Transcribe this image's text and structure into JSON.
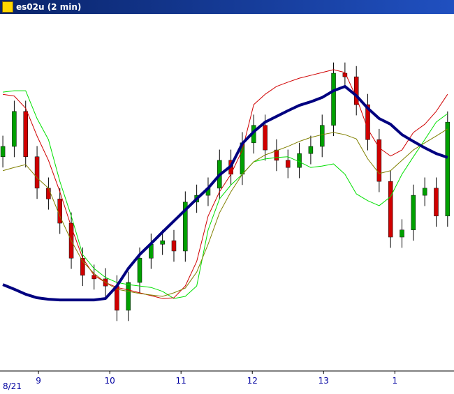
{
  "window": {
    "title": "es02u (2 min)"
  },
  "chart_data": {
    "type": "candlestick",
    "x": [
      8.5,
      8.66,
      8.82,
      8.98,
      9.14,
      9.3,
      9.46,
      9.62,
      9.78,
      9.94,
      10.1,
      10.26,
      10.42,
      10.58,
      10.74,
      10.9,
      11.06,
      11.22,
      11.38,
      11.54,
      11.7,
      11.86,
      12.02,
      12.18,
      12.34,
      12.5,
      12.66,
      12.82,
      12.98,
      13.14,
      13.3,
      13.46,
      13.62,
      13.78,
      13.94,
      14.1,
      14.26,
      14.42,
      14.58,
      14.74
    ],
    "open": [
      60,
      62.9,
      72.7,
      60.0,
      51.2,
      48.2,
      41.4,
      31.6,
      26.8,
      25.8,
      23.8,
      17.0,
      24.8,
      31.6,
      35.5,
      36.5,
      33.6,
      47.3,
      49.2,
      51.2,
      59.0,
      55.1,
      63.9,
      68.8,
      61.9,
      59.0,
      57.0,
      60.9,
      62.9,
      68.8,
      83.4,
      82.4,
      74.6,
      64.8,
      53.1,
      37.5,
      39.5,
      49.2,
      51.2,
      43.4
    ],
    "high": [
      65.9,
      75.7,
      75.7,
      63,
      54.2,
      51.2,
      44.4,
      34.6,
      29.8,
      28.8,
      26.8,
      27.8,
      34.6,
      38.5,
      39.5,
      39.5,
      50.3,
      52.2,
      54.2,
      62,
      62,
      66.9,
      71.8,
      71.8,
      64.9,
      62,
      63.9,
      65.9,
      71.8,
      86.4,
      86.4,
      85.4,
      77.6,
      67.8,
      56.1,
      42.5,
      52.2,
      54.2,
      54.2,
      72.7
    ],
    "low": [
      57,
      59.9,
      57,
      48.2,
      45.2,
      38.4,
      28.6,
      23.8,
      22.8,
      20.8,
      14,
      14,
      21.8,
      28.6,
      32.5,
      30.6,
      30.6,
      44.3,
      46.2,
      48.2,
      52.1,
      52.1,
      60.9,
      58.9,
      56,
      54,
      54,
      57.9,
      59.9,
      65.8,
      79.4,
      71.6,
      61.8,
      50.1,
      34.5,
      34.5,
      36.5,
      46.2,
      40.4,
      40.4
    ],
    "close": [
      62.9,
      72.7,
      60.0,
      51.2,
      48.2,
      41.4,
      31.6,
      26.8,
      25.8,
      23.8,
      17.0,
      24.8,
      31.6,
      35.5,
      36.5,
      33.6,
      47.3,
      49.2,
      51.2,
      59.0,
      55.1,
      63.9,
      68.8,
      61.9,
      59.0,
      57.0,
      60.9,
      62.9,
      68.8,
      83.4,
      82.4,
      74.6,
      64.8,
      53.1,
      37.5,
      39.5,
      49.2,
      51.2,
      43.4,
      69.7
    ],
    "up_color": "#00a000",
    "down_color": "#d00000",
    "wick_color": "#000000",
    "series": [
      {
        "color": "#00e000",
        "width": 1,
        "values": [
          78.1,
          78.5,
          78.5,
          70.7,
          64.8,
          53.1,
          43.4,
          32.6,
          28.7,
          26.2,
          24.8,
          24.2,
          23.8,
          23.4,
          22.3,
          20.3,
          20.9,
          23.8,
          39.5,
          48.2,
          52.1,
          55.1,
          58.6,
          59.4,
          59.8,
          60.0,
          58.6,
          57.0,
          57.4,
          58.0,
          55.1,
          49.6,
          47.7,
          46.3,
          48.8,
          55.1,
          60.0,
          64.8,
          69.7,
          72.1
        ]
      },
      {
        "color": "#d00000",
        "width": 1,
        "values": [
          77.5,
          77.0,
          73.6,
          65.8,
          59.0,
          50.2,
          40.4,
          31.6,
          26.8,
          24.8,
          23.4,
          22.7,
          21.9,
          21.1,
          20.3,
          20.5,
          23.8,
          30.7,
          43.4,
          50.2,
          55.1,
          61.9,
          74.6,
          77.5,
          79.7,
          80.9,
          82.0,
          82.8,
          83.6,
          84.4,
          83.6,
          76.6,
          67.8,
          62.5,
          60.2,
          61.9,
          66.8,
          69.1,
          72.7,
          77.5
        ]
      },
      {
        "color": "#808000",
        "width": 1,
        "values": [
          56.1,
          57.0,
          57.8,
          54.1,
          51.2,
          43.4,
          36.5,
          30.7,
          27.3,
          24.8,
          22.9,
          22.3,
          21.7,
          21.3,
          20.9,
          21.9,
          23.2,
          27.7,
          35.5,
          44.3,
          50.2,
          55.1,
          58.6,
          60.5,
          61.7,
          62.9,
          64.3,
          65.4,
          66.2,
          66.8,
          66.2,
          65.0,
          59.4,
          55.3,
          56.1,
          59.0,
          61.9,
          63.9,
          65.8,
          67.8
        ]
      },
      {
        "color": "#000080",
        "width": 4,
        "values": [
          24.2,
          22.9,
          21.5,
          20.5,
          20.1,
          19.9,
          19.9,
          19.9,
          19.9,
          20.3,
          23.8,
          28.7,
          32.6,
          35.7,
          38.9,
          42.0,
          45.1,
          48.2,
          51.2,
          54.9,
          57.4,
          63.7,
          67.0,
          69.7,
          71.3,
          72.9,
          74.4,
          75.4,
          76.6,
          78.5,
          79.7,
          77.1,
          73.6,
          70.7,
          69.1,
          66.2,
          64.3,
          62.5,
          60.9,
          59.8
        ]
      }
    ],
    "xlim": [
      8.46,
      14.83
    ],
    "ylim": [
      0,
      100
    ],
    "xticks": [
      9,
      10,
      11,
      12,
      13,
      {
        "value": 14,
        "label": "1"
      }
    ],
    "date_label": "8/21"
  }
}
